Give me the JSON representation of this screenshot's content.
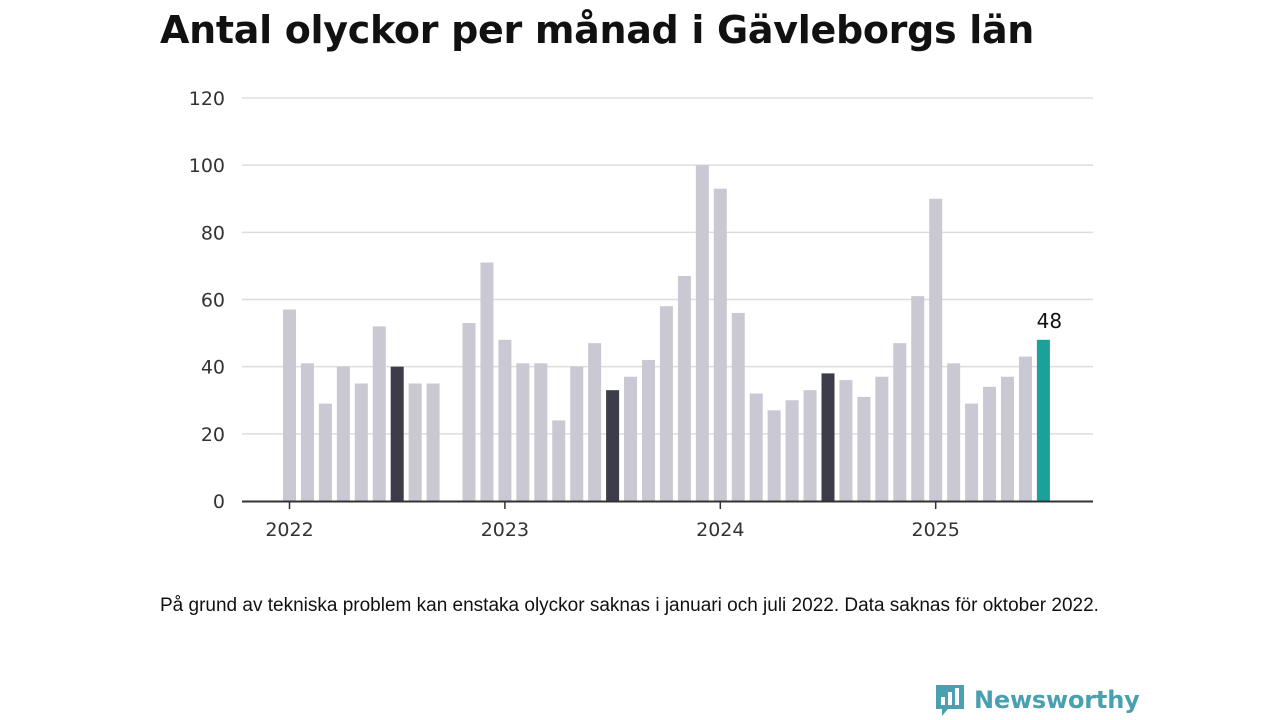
{
  "chart_data": {
    "type": "bar",
    "title": "Antal olyckor per månad i Gävleborgs län",
    "xlabel": "",
    "ylabel": "",
    "ylim": [
      0,
      120
    ],
    "yticks": [
      "0",
      "20",
      "40",
      "60",
      "80",
      "100",
      "120"
    ],
    "grid": true,
    "year_labels": [
      "2022",
      "2023",
      "2024",
      "2025"
    ],
    "colors": {
      "default": "#c9c8d3",
      "july": "#3d3c4a",
      "latest": "#1aa29a",
      "grid": "#dddddd",
      "axis": "#333333"
    },
    "months": [
      {
        "year": 2022,
        "month": 1,
        "value": 57
      },
      {
        "year": 2022,
        "month": 2,
        "value": 41
      },
      {
        "year": 2022,
        "month": 3,
        "value": 29
      },
      {
        "year": 2022,
        "month": 4,
        "value": 40
      },
      {
        "year": 2022,
        "month": 5,
        "value": 35
      },
      {
        "year": 2022,
        "month": 6,
        "value": 52
      },
      {
        "year": 2022,
        "month": 7,
        "value": 40,
        "highlight": "july"
      },
      {
        "year": 2022,
        "month": 8,
        "value": 35
      },
      {
        "year": 2022,
        "month": 9,
        "value": 35
      },
      {
        "year": 2022,
        "month": 10,
        "value": null
      },
      {
        "year": 2022,
        "month": 11,
        "value": 53
      },
      {
        "year": 2022,
        "month": 12,
        "value": 71
      },
      {
        "year": 2023,
        "month": 1,
        "value": 48
      },
      {
        "year": 2023,
        "month": 2,
        "value": 41
      },
      {
        "year": 2023,
        "month": 3,
        "value": 41
      },
      {
        "year": 2023,
        "month": 4,
        "value": 24
      },
      {
        "year": 2023,
        "month": 5,
        "value": 40
      },
      {
        "year": 2023,
        "month": 6,
        "value": 47
      },
      {
        "year": 2023,
        "month": 7,
        "value": 33,
        "highlight": "july"
      },
      {
        "year": 2023,
        "month": 8,
        "value": 37
      },
      {
        "year": 2023,
        "month": 9,
        "value": 42
      },
      {
        "year": 2023,
        "month": 10,
        "value": 58
      },
      {
        "year": 2023,
        "month": 11,
        "value": 67
      },
      {
        "year": 2023,
        "month": 12,
        "value": 100
      },
      {
        "year": 2024,
        "month": 1,
        "value": 93
      },
      {
        "year": 2024,
        "month": 2,
        "value": 56
      },
      {
        "year": 2024,
        "month": 3,
        "value": 32
      },
      {
        "year": 2024,
        "month": 4,
        "value": 27
      },
      {
        "year": 2024,
        "month": 5,
        "value": 30
      },
      {
        "year": 2024,
        "month": 6,
        "value": 33
      },
      {
        "year": 2024,
        "month": 7,
        "value": 38,
        "highlight": "july"
      },
      {
        "year": 2024,
        "month": 8,
        "value": 36
      },
      {
        "year": 2024,
        "month": 9,
        "value": 31
      },
      {
        "year": 2024,
        "month": 10,
        "value": 37
      },
      {
        "year": 2024,
        "month": 11,
        "value": 47
      },
      {
        "year": 2024,
        "month": 12,
        "value": 61
      },
      {
        "year": 2025,
        "month": 1,
        "value": 90
      },
      {
        "year": 2025,
        "month": 2,
        "value": 41
      },
      {
        "year": 2025,
        "month": 3,
        "value": 29
      },
      {
        "year": 2025,
        "month": 4,
        "value": 34
      },
      {
        "year": 2025,
        "month": 5,
        "value": 37
      },
      {
        "year": 2025,
        "month": 6,
        "value": 43
      },
      {
        "year": 2025,
        "month": 7,
        "value": 48,
        "highlight": "latest",
        "label": "48"
      }
    ]
  },
  "note": "På grund av tekniska problem kan enstaka olyckor saknas i januari och juli 2022. Data saknas för oktober 2022.",
  "brand": {
    "name": "Newsworthy",
    "icon": "newsworthy-logo-icon",
    "color": "#4aa0b0"
  }
}
